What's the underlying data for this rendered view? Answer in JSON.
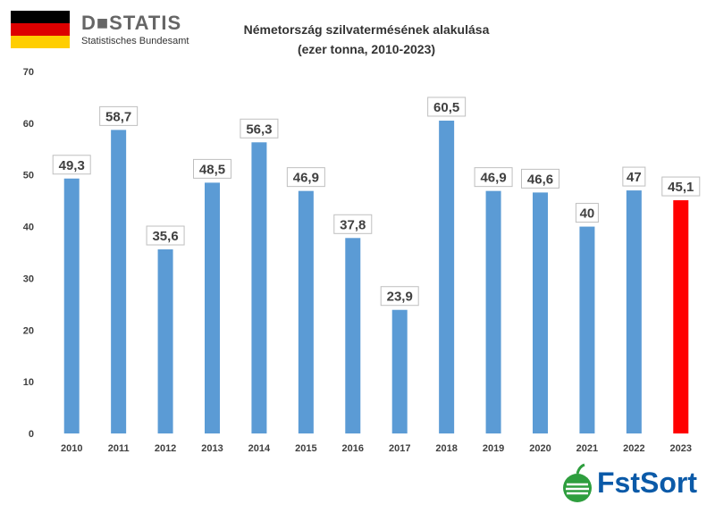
{
  "header": {
    "destatis_name": "D■STATIS",
    "destatis_subtitle": "Statistisches Bundesamt",
    "title_line1": "Németország szilvatermésének alakulása",
    "title_line2": "(ezer tonna, 2010-2023)"
  },
  "colors": {
    "bar": "#5b9bd5",
    "highlight": "#ff0000",
    "flag_black": "#000000",
    "flag_red": "#dd0000",
    "flag_gold": "#ffce00",
    "logo_blue": "#0b5aa8",
    "logo_green": "#2e9e3e"
  },
  "logo": {
    "name": "FstSort"
  },
  "chart_data": {
    "type": "bar",
    "title": "Németország szilvatermésének alakulása (ezer tonna, 2010-2023)",
    "categories": [
      "2010",
      "2011",
      "2012",
      "2013",
      "2014",
      "2015",
      "2016",
      "2017",
      "2018",
      "2019",
      "2020",
      "2021",
      "2022",
      "2023"
    ],
    "values": [
      49.3,
      58.7,
      35.6,
      48.5,
      56.3,
      46.9,
      37.8,
      23.9,
      60.5,
      46.9,
      46.6,
      40,
      47,
      45.1
    ],
    "value_labels": [
      "49,3",
      "58,7",
      "35,6",
      "48,5",
      "56,3",
      "46,9",
      "37,8",
      "23,9",
      "60,5",
      "46,9",
      "46,6",
      "40",
      "47",
      "45,1"
    ],
    "highlight_index": 13,
    "ylim": [
      0,
      70
    ],
    "yticks": [
      0,
      10,
      20,
      30,
      40,
      50,
      60,
      70
    ],
    "xlabel": "",
    "ylabel": "",
    "grid": false,
    "legend": "none"
  }
}
